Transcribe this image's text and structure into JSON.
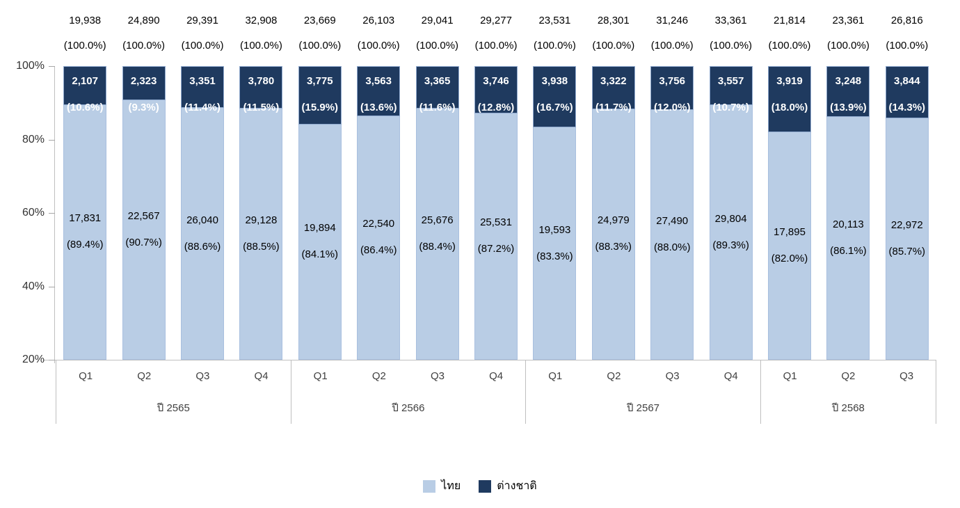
{
  "chart_data": {
    "type": "bar",
    "stacked": true,
    "percent_stacked": true,
    "title": "",
    "xlabel": "",
    "ylabel": "",
    "y_axis": {
      "min_pct": 20,
      "max_pct": 100,
      "tick_labels": [
        "100%",
        "80%",
        "60%",
        "40%",
        "20%"
      ],
      "tick_values": [
        100,
        80,
        60,
        40,
        20
      ]
    },
    "grid": false,
    "legend_position": "bottom",
    "series_names": [
      "ไทย",
      "ต่างชาติ"
    ],
    "groups": [
      {
        "year_label": "ปี 2565",
        "quarters": [
          {
            "label": "Q1",
            "total": "19,938",
            "total_pct": "(100.0%)",
            "thai": "17,831",
            "thai_pct": "(89.4%)",
            "thai_pct_num": 89.4,
            "foreign": "2,107",
            "foreign_pct": "(10.6%)",
            "foreign_pct_num": 10.6
          },
          {
            "label": "Q2",
            "total": "24,890",
            "total_pct": "(100.0%)",
            "thai": "22,567",
            "thai_pct": "(90.7%)",
            "thai_pct_num": 90.7,
            "foreign": "2,323",
            "foreign_pct": "(9.3%)",
            "foreign_pct_num": 9.3
          },
          {
            "label": "Q3",
            "total": "29,391",
            "total_pct": "(100.0%)",
            "thai": "26,040",
            "thai_pct": "(88.6%)",
            "thai_pct_num": 88.6,
            "foreign": "3,351",
            "foreign_pct": "(11.4%)",
            "foreign_pct_num": 11.4
          },
          {
            "label": "Q4",
            "total": "32,908",
            "total_pct": "(100.0%)",
            "thai": "29,128",
            "thai_pct": "(88.5%)",
            "thai_pct_num": 88.5,
            "foreign": "3,780",
            "foreign_pct": "(11.5%)",
            "foreign_pct_num": 11.5
          }
        ]
      },
      {
        "year_label": "ปี 2566",
        "quarters": [
          {
            "label": "Q1",
            "total": "23,669",
            "total_pct": "(100.0%)",
            "thai": "19,894",
            "thai_pct": "(84.1%)",
            "thai_pct_num": 84.1,
            "foreign": "3,775",
            "foreign_pct": "(15.9%)",
            "foreign_pct_num": 15.9
          },
          {
            "label": "Q2",
            "total": "26,103",
            "total_pct": "(100.0%)",
            "thai": "22,540",
            "thai_pct": "(86.4%)",
            "thai_pct_num": 86.4,
            "foreign": "3,563",
            "foreign_pct": "(13.6%)",
            "foreign_pct_num": 13.6
          },
          {
            "label": "Q3",
            "total": "29,041",
            "total_pct": "(100.0%)",
            "thai": "25,676",
            "thai_pct": "(88.4%)",
            "thai_pct_num": 88.4,
            "foreign": "3,365",
            "foreign_pct": "(11.6%)",
            "foreign_pct_num": 11.6
          },
          {
            "label": "Q4",
            "total": "29,277",
            "total_pct": "(100.0%)",
            "thai": "25,531",
            "thai_pct": "(87.2%)",
            "thai_pct_num": 87.2,
            "foreign": "3,746",
            "foreign_pct": "(12.8%)",
            "foreign_pct_num": 12.8
          }
        ]
      },
      {
        "year_label": "ปี 2567",
        "quarters": [
          {
            "label": "Q1",
            "total": "23,531",
            "total_pct": "(100.0%)",
            "thai": "19,593",
            "thai_pct": "(83.3%)",
            "thai_pct_num": 83.3,
            "foreign": "3,938",
            "foreign_pct": "(16.7%)",
            "foreign_pct_num": 16.7
          },
          {
            "label": "Q2",
            "total": "28,301",
            "total_pct": "(100.0%)",
            "thai": "24,979",
            "thai_pct": "(88.3%)",
            "thai_pct_num": 88.3,
            "foreign": "3,322",
            "foreign_pct": "(11.7%)",
            "foreign_pct_num": 11.7
          },
          {
            "label": "Q3",
            "total": "31,246",
            "total_pct": "(100.0%)",
            "thai": "27,490",
            "thai_pct": "(88.0%)",
            "thai_pct_num": 88.0,
            "foreign": "3,756",
            "foreign_pct": "(12.0%)",
            "foreign_pct_num": 12.0
          },
          {
            "label": "Q4",
            "total": "33,361",
            "total_pct": "(100.0%)",
            "thai": "29,804",
            "thai_pct": "(89.3%)",
            "thai_pct_num": 89.3,
            "foreign": "3,557",
            "foreign_pct": "(10.7%)",
            "foreign_pct_num": 10.7
          }
        ]
      },
      {
        "year_label": "ปี 2568",
        "quarters": [
          {
            "label": "Q1",
            "total": "21,814",
            "total_pct": "(100.0%)",
            "thai": "17,895",
            "thai_pct": "(82.0%)",
            "thai_pct_num": 82.0,
            "foreign": "3,919",
            "foreign_pct": "(18.0%)",
            "foreign_pct_num": 18.0
          },
          {
            "label": "Q2",
            "total": "23,361",
            "total_pct": "(100.0%)",
            "thai": "20,113",
            "thai_pct": "(86.1%)",
            "thai_pct_num": 86.1,
            "foreign": "3,248",
            "foreign_pct": "(13.9%)",
            "foreign_pct_num": 13.9
          },
          {
            "label": "Q3",
            "total": "26,816",
            "total_pct": "(100.0%)",
            "thai": "22,972",
            "thai_pct": "(85.7%)",
            "thai_pct_num": 85.7,
            "foreign": "3,844",
            "foreign_pct": "(14.3%)",
            "foreign_pct_num": 14.3
          }
        ]
      }
    ],
    "legend": [
      {
        "label": "ไทย",
        "color": "#B9CDE5"
      },
      {
        "label": "ต่างชาติ",
        "color": "#1F3A5F"
      }
    ]
  },
  "colors": {
    "thai_fill": "#B9CDE5",
    "foreign_fill": "#1F3A5F",
    "axis_line": "#BFBFBF",
    "label_dark_text": "#FFFFFF",
    "label_light_text": "#000000"
  }
}
